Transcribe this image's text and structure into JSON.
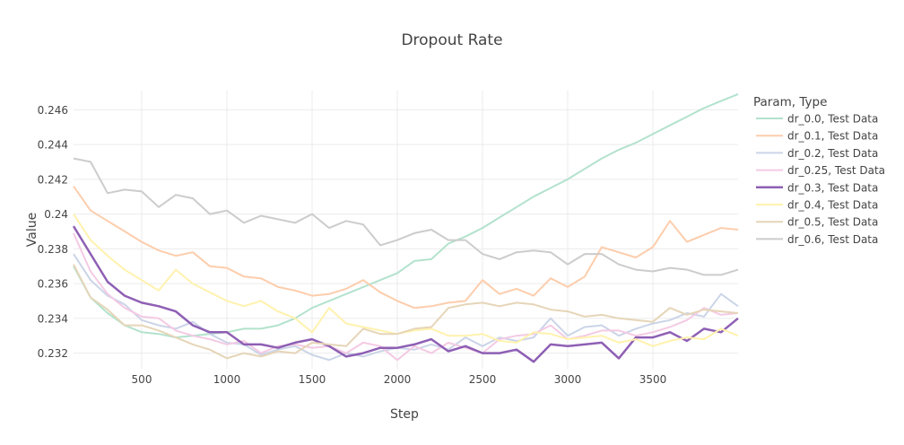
{
  "chart_data": {
    "type": "line",
    "title": "Dropout Rate",
    "xlabel": "Step",
    "ylabel": "Value",
    "xlim": [
      100,
      4000
    ],
    "ylim": [
      0.2311,
      0.2471
    ],
    "xticks": [
      500,
      1000,
      1500,
      2000,
      2500,
      3000,
      3500
    ],
    "yticks": [
      0.232,
      0.234,
      0.236,
      0.238,
      0.24,
      0.242,
      0.244,
      0.246
    ],
    "ytick_labels": [
      "0.232",
      "0.234",
      "0.236",
      "0.238",
      "0.24",
      "0.242",
      "0.244",
      "0.246"
    ],
    "grid": true,
    "legend_title": "Param, Type",
    "legend_position": "right",
    "x": [
      100,
      200,
      300,
      400,
      500,
      600,
      700,
      800,
      900,
      1000,
      1100,
      1200,
      1300,
      1400,
      1500,
      1600,
      1700,
      1800,
      1900,
      2000,
      2100,
      2200,
      2300,
      2400,
      2500,
      2600,
      2700,
      2800,
      2900,
      3000,
      3100,
      3200,
      3300,
      3400,
      3500,
      3600,
      3700,
      3800,
      3900,
      4000
    ],
    "series": [
      {
        "name": "dr_0.0, Test Data",
        "color": "#b3e2cd",
        "width": 2,
        "values": [
          0.237,
          0.2352,
          0.2343,
          0.2336,
          0.2332,
          0.2331,
          0.2329,
          0.233,
          0.2331,
          0.2332,
          0.2334,
          0.2334,
          0.2336,
          0.234,
          0.2346,
          0.235,
          0.2354,
          0.2358,
          0.2362,
          0.2366,
          0.2373,
          0.2374,
          0.2383,
          0.2387,
          0.2392,
          0.2398,
          0.2404,
          0.241,
          0.2415,
          0.242,
          0.2426,
          0.2432,
          0.2437,
          0.2441,
          0.2446,
          0.2451,
          0.2456,
          0.2461,
          0.2465,
          0.2469
        ]
      },
      {
        "name": "dr_0.1, Test Data",
        "color": "#fdcdac",
        "width": 2,
        "values": [
          0.2416,
          0.2402,
          0.2396,
          0.239,
          0.2384,
          0.2379,
          0.2376,
          0.2378,
          0.237,
          0.2369,
          0.2364,
          0.2363,
          0.2358,
          0.2356,
          0.2353,
          0.2354,
          0.2357,
          0.2362,
          0.2355,
          0.235,
          0.2346,
          0.2347,
          0.2349,
          0.235,
          0.2362,
          0.2354,
          0.2357,
          0.2353,
          0.2363,
          0.2358,
          0.2364,
          0.2381,
          0.2378,
          0.2375,
          0.2381,
          0.2396,
          0.2384,
          0.2388,
          0.2392,
          0.2391
        ]
      },
      {
        "name": "dr_0.2, Test Data",
        "color": "#cbd5e8",
        "width": 2,
        "values": [
          0.2377,
          0.2362,
          0.2353,
          0.2348,
          0.2339,
          0.2336,
          0.2334,
          0.2338,
          0.2331,
          0.2326,
          0.2325,
          0.2319,
          0.2322,
          0.2324,
          0.2319,
          0.2316,
          0.232,
          0.2318,
          0.2321,
          0.2323,
          0.2322,
          0.2325,
          0.2322,
          0.2329,
          0.2324,
          0.2329,
          0.2327,
          0.2329,
          0.234,
          0.233,
          0.2335,
          0.2336,
          0.233,
          0.2334,
          0.2337,
          0.2339,
          0.2343,
          0.2341,
          0.2354,
          0.2347
        ]
      },
      {
        "name": "dr_0.25, Test Data",
        "color": "#f4cae4",
        "width": 2,
        "values": [
          0.2389,
          0.2367,
          0.2354,
          0.2346,
          0.2341,
          0.234,
          0.2333,
          0.233,
          0.2328,
          0.2325,
          0.2327,
          0.232,
          0.2324,
          0.2325,
          0.2323,
          0.2324,
          0.232,
          0.2326,
          0.2324,
          0.2316,
          0.2324,
          0.232,
          0.2326,
          0.2323,
          0.232,
          0.2328,
          0.233,
          0.2331,
          0.2336,
          0.2328,
          0.233,
          0.2333,
          0.2333,
          0.233,
          0.2332,
          0.2335,
          0.2339,
          0.2346,
          0.2342,
          0.2343
        ]
      },
      {
        "name": "dr_0.3, Test Data",
        "color": "#8e5fb4",
        "width": 2.5,
        "values": [
          0.2393,
          0.2377,
          0.2361,
          0.2353,
          0.2349,
          0.2347,
          0.2344,
          0.2336,
          0.2332,
          0.2332,
          0.2325,
          0.2325,
          0.2323,
          0.2326,
          0.2328,
          0.2324,
          0.2318,
          0.232,
          0.2323,
          0.2323,
          0.2325,
          0.2328,
          0.2321,
          0.2324,
          0.232,
          0.232,
          0.2322,
          0.2315,
          0.2325,
          0.2324,
          0.2325,
          0.2326,
          0.2317,
          0.2329,
          0.2329,
          0.2332,
          0.2327,
          0.2334,
          0.2332,
          0.234
        ]
      },
      {
        "name": "dr_0.4, Test Data",
        "color": "#fff2ae",
        "width": 2,
        "values": [
          0.24,
          0.2385,
          0.2376,
          0.2368,
          0.2362,
          0.2356,
          0.2368,
          0.236,
          0.2355,
          0.235,
          0.2347,
          0.235,
          0.2344,
          0.234,
          0.2332,
          0.2346,
          0.2337,
          0.2335,
          0.2333,
          0.2331,
          0.2333,
          0.2334,
          0.233,
          0.233,
          0.2331,
          0.2327,
          0.2326,
          0.2332,
          0.2331,
          0.2328,
          0.2329,
          0.233,
          0.2326,
          0.2328,
          0.2324,
          0.2327,
          0.2329,
          0.2328,
          0.2334,
          0.233
        ]
      },
      {
        "name": "dr_0.5, Test Data",
        "color": "#e6d5b8",
        "width": 2,
        "values": [
          0.2371,
          0.2352,
          0.2345,
          0.2336,
          0.2336,
          0.2333,
          0.2329,
          0.2325,
          0.2322,
          0.2317,
          0.232,
          0.2318,
          0.2321,
          0.232,
          0.2326,
          0.2325,
          0.2324,
          0.2334,
          0.2331,
          0.2331,
          0.2334,
          0.2335,
          0.2346,
          0.2348,
          0.2349,
          0.2347,
          0.2349,
          0.2348,
          0.2345,
          0.2344,
          0.2341,
          0.2342,
          0.234,
          0.2339,
          0.2338,
          0.2346,
          0.2342,
          0.2345,
          0.2344,
          0.2343
        ]
      },
      {
        "name": "dr_0.6, Test Data",
        "color": "#cccccc",
        "width": 2,
        "values": [
          0.2432,
          0.243,
          0.2412,
          0.2414,
          0.2413,
          0.2404,
          0.2411,
          0.2409,
          0.24,
          0.2402,
          0.2395,
          0.2399,
          0.2397,
          0.2395,
          0.24,
          0.2392,
          0.2396,
          0.2394,
          0.2382,
          0.2385,
          0.2389,
          0.2391,
          0.2385,
          0.2385,
          0.2377,
          0.2374,
          0.2378,
          0.2379,
          0.2378,
          0.2371,
          0.2377,
          0.2377,
          0.2371,
          0.2368,
          0.2367,
          0.2369,
          0.2368,
          0.2365,
          0.2365,
          0.2368
        ]
      }
    ]
  }
}
